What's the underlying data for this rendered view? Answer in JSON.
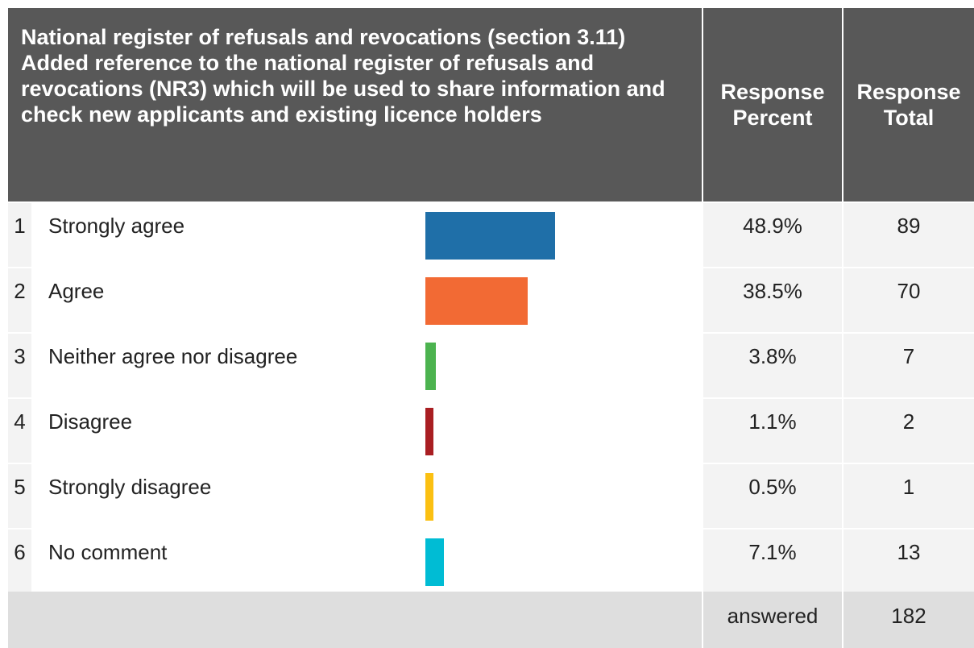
{
  "header": {
    "question": "National register of refusals and revocations (section 3.11) Added reference to the national register of refusals and revocations (NR3) which will be used to share information and check new applicants and existing licence holders",
    "percent_label": "Response Percent",
    "total_label": "Response Total"
  },
  "rows": [
    {
      "num": "1",
      "label": "Strongly agree",
      "percent": "48.9%",
      "total": "89",
      "color": "#1f6fa8",
      "fraction": 0.489
    },
    {
      "num": "2",
      "label": "Agree",
      "percent": "38.5%",
      "total": "70",
      "color": "#f26a34",
      "fraction": 0.385
    },
    {
      "num": "3",
      "label": "Neither agree nor disagree",
      "percent": "3.8%",
      "total": "7",
      "color": "#4cb34f",
      "fraction": 0.038
    },
    {
      "num": "4",
      "label": "Disagree",
      "percent": "1.1%",
      "total": "2",
      "color": "#a91e22",
      "fraction": 0.011
    },
    {
      "num": "5",
      "label": "Strongly disagree",
      "percent": "0.5%",
      "total": "1",
      "color": "#fbc012",
      "fraction": 0.005
    },
    {
      "num": "6",
      "label": "No comment",
      "percent": "7.1%",
      "total": "13",
      "color": "#00bcd4",
      "fraction": 0.071
    }
  ],
  "footer": {
    "label": "answered",
    "value": "182"
  }
}
